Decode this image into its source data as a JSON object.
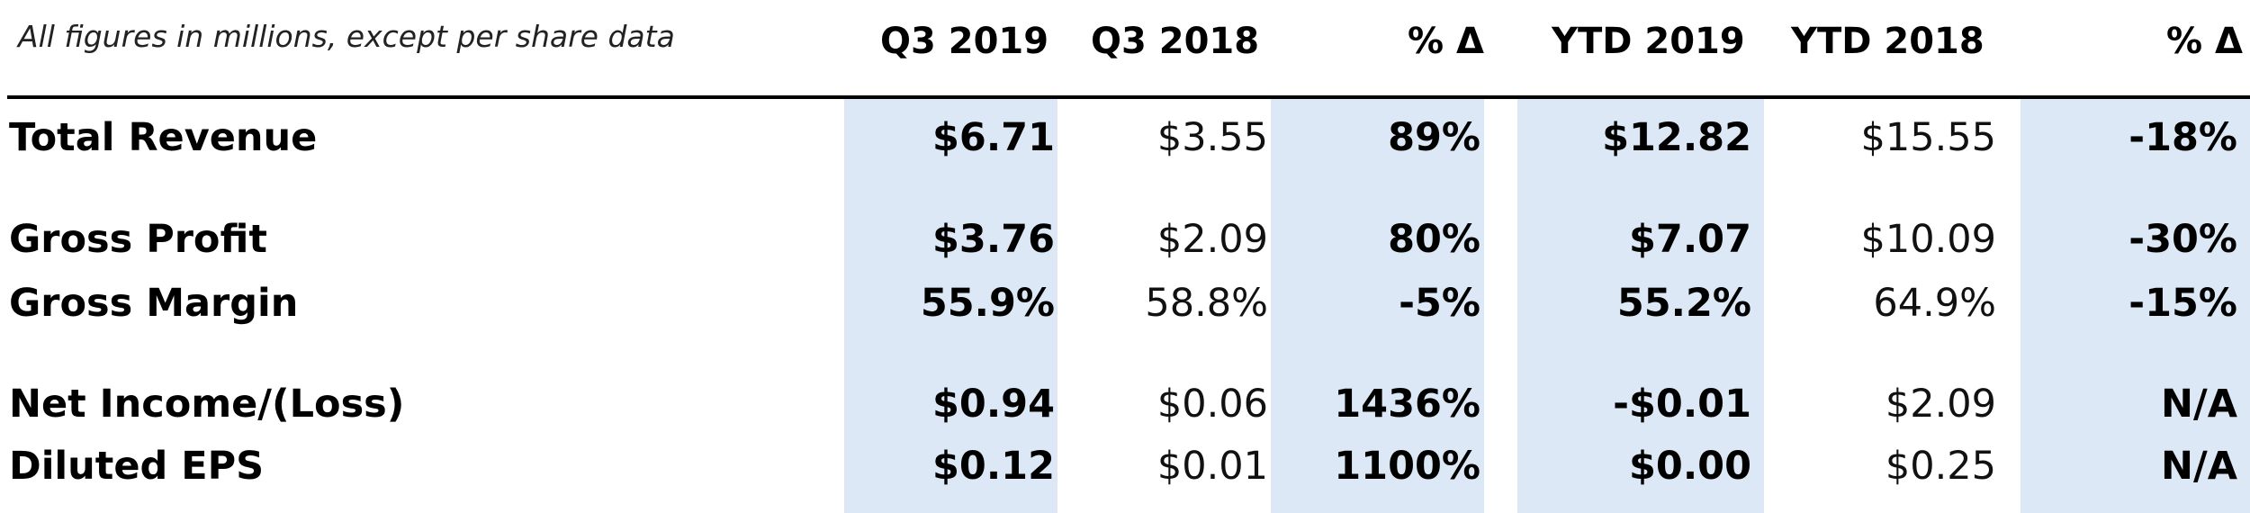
{
  "note": "All figures in millions, except per share data",
  "columns": [
    "Q3 2019",
    "Q3 2018",
    "% Δ",
    "YTD 2019",
    "YTD 2018",
    "% Δ"
  ],
  "highlight_color": "#dce8f5",
  "rows": [
    {
      "label": "Total Revenue",
      "values": [
        "$6.71",
        "$3.55",
        "89%",
        "$12.82",
        "$15.55",
        "-18%"
      ]
    },
    {
      "label": "Gross Profit",
      "values": [
        "$3.76",
        "$2.09",
        "80%",
        "$7.07",
        "$10.09",
        "-30%"
      ]
    },
    {
      "label": "Gross Margin",
      "values": [
        "55.9%",
        "58.8%",
        "-5%",
        "55.2%",
        "64.9%",
        "-15%"
      ]
    },
    {
      "label": "Net Income/(Loss)",
      "values": [
        "$0.94",
        "$0.06",
        "1436%",
        "-$0.01",
        "$2.09",
        "N/A"
      ]
    },
    {
      "label": "Diluted EPS",
      "values": [
        "$0.12",
        "$0.01",
        "1100%",
        "$0.00",
        "$0.25",
        "N/A"
      ]
    }
  ]
}
